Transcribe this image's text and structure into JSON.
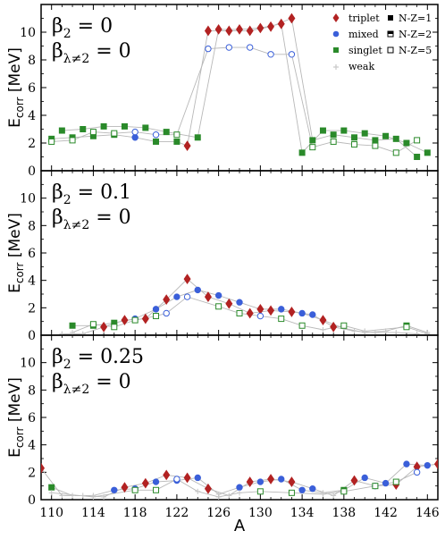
{
  "chart_data": {
    "type": "scatter",
    "xlabel": "A",
    "ylabel_main": "E",
    "ylabel_sub": "corr",
    "ylabel_unit": "[MeV]",
    "xlim": [
      109,
      147
    ],
    "ylim": [
      0,
      12
    ],
    "xticks": [
      110,
      114,
      118,
      122,
      126,
      130,
      134,
      138,
      142,
      146
    ],
    "yticks": [
      0,
      2,
      4,
      6,
      8,
      10
    ],
    "legend": {
      "placement": "top-right",
      "types": [
        {
          "name": "triplet",
          "marker": "diamond",
          "color": "#b22222"
        },
        {
          "name": "mixed",
          "marker": "circle",
          "color": "#3a5fd9"
        },
        {
          "name": "singlet",
          "marker": "square",
          "color": "#2a8a2a"
        },
        {
          "name": "weak",
          "marker": "cross",
          "color": "#c8c8c8"
        }
      ],
      "isospin": [
        {
          "name": "N-Z=1",
          "fill": "filled"
        },
        {
          "name": "N-Z=2",
          "fill": "half"
        },
        {
          "name": "N-Z=5",
          "fill": "open"
        }
      ]
    },
    "panels": [
      {
        "beta2_label": "β₂ = 0",
        "beta2_value": "0",
        "betal_value": "0",
        "series": [
          {
            "name": "N-Z=1",
            "points": [
              [
                110,
                2.3,
                "singlet"
              ],
              [
                112,
                2.4,
                "singlet"
              ],
              [
                114,
                2.5,
                "singlet"
              ],
              [
                116,
                2.6,
                "singlet"
              ],
              [
                118,
                2.4,
                "mixed"
              ],
              [
                120,
                2.1,
                "singlet"
              ],
              [
                122,
                2.1,
                "singlet"
              ],
              [
                123,
                1.8,
                "triplet"
              ],
              [
                125,
                10.1,
                "triplet"
              ],
              [
                127,
                10.1,
                "triplet"
              ],
              [
                129,
                10.1,
                "triplet"
              ],
              [
                131,
                10.4,
                "triplet"
              ],
              [
                133,
                11.0,
                "triplet"
              ],
              [
                135,
                2.2,
                "singlet"
              ],
              [
                137,
                2.6,
                "singlet"
              ],
              [
                139,
                2.4,
                "singlet"
              ],
              [
                141,
                2.2,
                "singlet"
              ],
              [
                143,
                2.3,
                "singlet"
              ],
              [
                145,
                1.0,
                "singlet"
              ]
            ]
          },
          {
            "name": "N-Z=2",
            "points": [
              [
                111,
                2.9,
                "singlet"
              ],
              [
                113,
                3.0,
                "singlet"
              ],
              [
                115,
                3.2,
                "singlet"
              ],
              [
                117,
                3.2,
                "singlet"
              ],
              [
                119,
                3.1,
                "singlet"
              ],
              [
                121,
                2.8,
                "singlet"
              ],
              [
                124,
                2.4,
                "singlet"
              ],
              [
                126,
                10.2,
                "triplet"
              ],
              [
                128,
                10.2,
                "triplet"
              ],
              [
                130,
                10.3,
                "triplet"
              ],
              [
                132,
                10.6,
                "triplet"
              ],
              [
                134,
                1.3,
                "singlet"
              ],
              [
                136,
                2.9,
                "singlet"
              ],
              [
                138,
                2.9,
                "singlet"
              ],
              [
                140,
                2.7,
                "singlet"
              ],
              [
                142,
                2.5,
                "singlet"
              ],
              [
                144,
                2.0,
                "singlet"
              ],
              [
                146,
                1.3,
                "singlet"
              ]
            ]
          },
          {
            "name": "N-Z=5",
            "points": [
              [
                110,
                2.1,
                "singlet"
              ],
              [
                112,
                2.2,
                "singlet"
              ],
              [
                114,
                2.8,
                "singlet"
              ],
              [
                116,
                2.7,
                "singlet"
              ],
              [
                118,
                2.8,
                "mixed"
              ],
              [
                120,
                2.6,
                "mixed"
              ],
              [
                122,
                2.6,
                "singlet"
              ],
              [
                125,
                8.8,
                "mixed"
              ],
              [
                127,
                8.9,
                "mixed"
              ],
              [
                129,
                8.9,
                "mixed"
              ],
              [
                131,
                8.4,
                "mixed"
              ],
              [
                133,
                8.4,
                "mixed"
              ],
              [
                135,
                1.7,
                "singlet"
              ],
              [
                137,
                2.1,
                "singlet"
              ],
              [
                139,
                1.9,
                "singlet"
              ],
              [
                141,
                1.8,
                "singlet"
              ],
              [
                143,
                1.3,
                "singlet"
              ],
              [
                145,
                2.2,
                "singlet"
              ]
            ]
          }
        ]
      },
      {
        "beta2_label": "β₂ = 0.1",
        "beta2_value": "0.1",
        "betal_value": "0",
        "series": [
          {
            "name": "N-Z=1",
            "points": [
              [
                111,
                0.1,
                "weak"
              ],
              [
                113,
                0.1,
                "weak"
              ],
              [
                115,
                0.6,
                "triplet"
              ],
              [
                117,
                1.1,
                "triplet"
              ],
              [
                119,
                1.2,
                "triplet"
              ],
              [
                121,
                2.6,
                "triplet"
              ],
              [
                123,
                4.1,
                "triplet"
              ],
              [
                125,
                2.8,
                "triplet"
              ],
              [
                127,
                2.3,
                "triplet"
              ],
              [
                129,
                1.6,
                "triplet"
              ],
              [
                131,
                1.8,
                "triplet"
              ],
              [
                133,
                1.7,
                "triplet"
              ],
              [
                135,
                1.5,
                "mixed"
              ],
              [
                137,
                0.6,
                "triplet"
              ],
              [
                139,
                0.3,
                "weak"
              ],
              [
                141,
                0.2,
                "weak"
              ],
              [
                143,
                0.2,
                "weak"
              ],
              [
                145,
                0.1,
                "weak"
              ]
            ]
          },
          {
            "name": "N-Z=2",
            "points": [
              [
                112,
                0.7,
                "singlet"
              ],
              [
                114,
                0.7,
                "singlet"
              ],
              [
                116,
                0.9,
                "singlet"
              ],
              [
                118,
                1.2,
                "mixed"
              ],
              [
                120,
                1.9,
                "mixed"
              ],
              [
                122,
                2.8,
                "mixed"
              ],
              [
                124,
                3.3,
                "mixed"
              ],
              [
                126,
                2.9,
                "mixed"
              ],
              [
                128,
                2.4,
                "mixed"
              ],
              [
                130,
                1.9,
                "triplet"
              ],
              [
                132,
                1.9,
                "mixed"
              ],
              [
                134,
                1.6,
                "mixed"
              ],
              [
                136,
                1.1,
                "triplet"
              ],
              [
                138,
                0.5,
                "weak"
              ],
              [
                140,
                0.2,
                "weak"
              ],
              [
                142,
                0.3,
                "weak"
              ],
              [
                144,
                0.7,
                "singlet"
              ],
              [
                146,
                0.2,
                "weak"
              ]
            ]
          },
          {
            "name": "N-Z=5",
            "points": [
              [
                112,
                0.2,
                "weak"
              ],
              [
                114,
                0.8,
                "singlet"
              ],
              [
                116,
                0.6,
                "singlet"
              ],
              [
                118,
                1.1,
                "singlet"
              ],
              [
                120,
                1.4,
                "singlet"
              ],
              [
                121,
                1.6,
                "mixed"
              ],
              [
                123,
                2.8,
                "mixed"
              ],
              [
                126,
                2.1,
                "singlet"
              ],
              [
                128,
                1.6,
                "singlet"
              ],
              [
                130,
                1.4,
                "mixed"
              ],
              [
                132,
                1.2,
                "singlet"
              ],
              [
                134,
                0.7,
                "singlet"
              ],
              [
                136,
                0.4,
                "weak"
              ],
              [
                138,
                0.7,
                "singlet"
              ],
              [
                140,
                0.3,
                "weak"
              ],
              [
                144,
                0.6,
                "singlet"
              ],
              [
                146,
                0.1,
                "weak"
              ]
            ]
          }
        ]
      },
      {
        "beta2_label": "β₂ = 0.25",
        "beta2_value": "0.25",
        "betal_value": "0",
        "series": [
          {
            "name": "N-Z=1",
            "points": [
              [
                109,
                2.3,
                "triplet"
              ],
              [
                111,
                0.3,
                "weak"
              ],
              [
                113,
                0.3,
                "weak"
              ],
              [
                115,
                0.2,
                "weak"
              ],
              [
                117,
                0.9,
                "triplet"
              ],
              [
                119,
                1.2,
                "triplet"
              ],
              [
                121,
                1.8,
                "triplet"
              ],
              [
                123,
                1.6,
                "triplet"
              ],
              [
                125,
                0.8,
                "triplet"
              ],
              [
                127,
                0.3,
                "weak"
              ],
              [
                129,
                1.3,
                "triplet"
              ],
              [
                131,
                1.5,
                "triplet"
              ],
              [
                133,
                1.3,
                "triplet"
              ],
              [
                135,
                0.8,
                "mixed"
              ],
              [
                137,
                0.3,
                "weak"
              ],
              [
                139,
                1.4,
                "triplet"
              ],
              [
                141,
                1.0,
                "mixed"
              ],
              [
                143,
                1.1,
                "triplet"
              ],
              [
                145,
                2.4,
                "triplet"
              ],
              [
                147,
                2.6,
                "triplet"
              ]
            ]
          },
          {
            "name": "N-Z=2",
            "points": [
              [
                110,
                0.9,
                "singlet"
              ],
              [
                112,
                0.3,
                "weak"
              ],
              [
                114,
                0.3,
                "weak"
              ],
              [
                116,
                0.7,
                "mixed"
              ],
              [
                118,
                0.8,
                "mixed"
              ],
              [
                120,
                1.3,
                "mixed"
              ],
              [
                122,
                1.4,
                "mixed"
              ],
              [
                124,
                1.6,
                "mixed"
              ],
              [
                126,
                0.4,
                "weak"
              ],
              [
                128,
                0.9,
                "mixed"
              ],
              [
                130,
                1.3,
                "mixed"
              ],
              [
                132,
                1.5,
                "mixed"
              ],
              [
                134,
                0.7,
                "mixed"
              ],
              [
                136,
                0.5,
                "weak"
              ],
              [
                138,
                0.7,
                "singlet"
              ],
              [
                140,
                1.6,
                "mixed"
              ],
              [
                142,
                1.2,
                "mixed"
              ],
              [
                144,
                2.6,
                "mixed"
              ],
              [
                146,
                2.5,
                "mixed"
              ]
            ]
          },
          {
            "name": "N-Z=5",
            "points": [
              [
                110,
                0.5,
                "weak"
              ],
              [
                114,
                0.2,
                "weak"
              ],
              [
                118,
                0.7,
                "singlet"
              ],
              [
                120,
                0.7,
                "singlet"
              ],
              [
                122,
                1.5,
                "mixed"
              ],
              [
                124,
                0.6,
                "weak"
              ],
              [
                126,
                0.2,
                "weak"
              ],
              [
                128,
                0.5,
                "weak"
              ],
              [
                130,
                0.6,
                "singlet"
              ],
              [
                133,
                0.5,
                "singlet"
              ],
              [
                136,
                0.4,
                "weak"
              ],
              [
                138,
                0.6,
                "singlet"
              ],
              [
                141,
                1.0,
                "singlet"
              ],
              [
                143,
                1.3,
                "singlet"
              ],
              [
                145,
                2.0,
                "mixed"
              ]
            ]
          }
        ]
      }
    ]
  }
}
